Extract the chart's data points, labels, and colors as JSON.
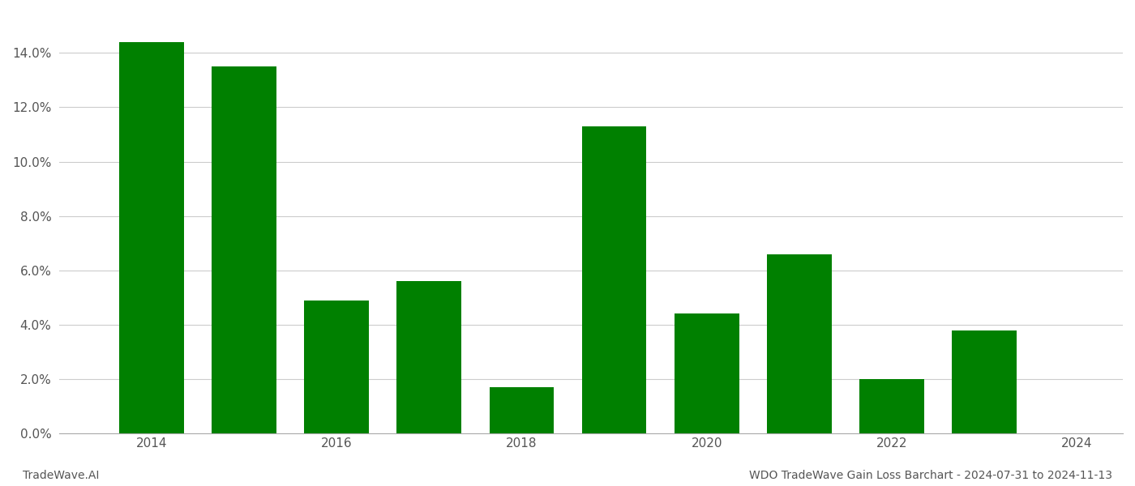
{
  "years": [
    2014,
    2015,
    2016,
    2017,
    2018,
    2019,
    2020,
    2021,
    2022,
    2023
  ],
  "values": [
    0.144,
    0.135,
    0.049,
    0.056,
    0.017,
    0.113,
    0.044,
    0.066,
    0.02,
    0.038
  ],
  "bar_color": "#008000",
  "background_color": "#ffffff",
  "grid_color": "#cccccc",
  "xlim": [
    2013.0,
    2024.5
  ],
  "ylim": [
    0.0,
    0.155
  ],
  "yticks": [
    0.0,
    0.02,
    0.04,
    0.06,
    0.08,
    0.1,
    0.12,
    0.14
  ],
  "xticks": [
    2014,
    2016,
    2018,
    2020,
    2022,
    2024
  ],
  "tick_fontsize": 11,
  "footer_left": "TradeWave.AI",
  "footer_right": "WDO TradeWave Gain Loss Barchart - 2024-07-31 to 2024-11-13",
  "footer_fontsize": 10,
  "bar_width": 0.7
}
